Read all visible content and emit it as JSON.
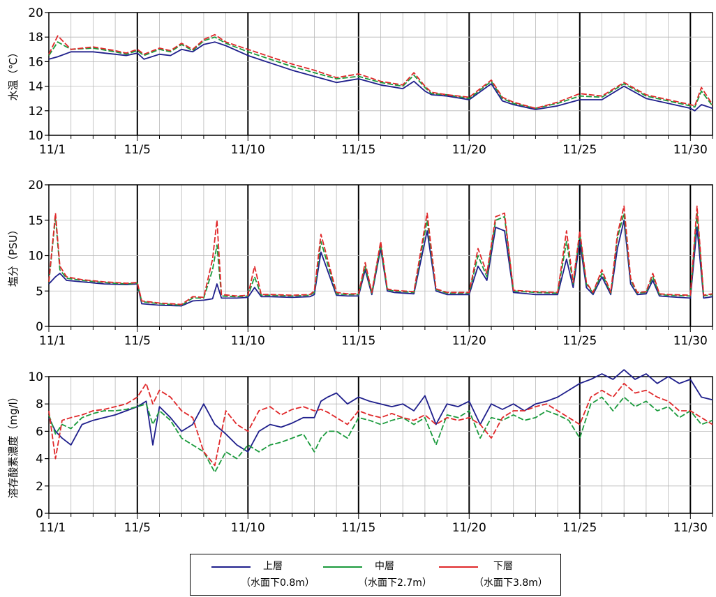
{
  "colors": {
    "upper": "#1f1f8c",
    "middle": "#1a9a3c",
    "lower": "#e0282a"
  },
  "legend": [
    {
      "key": "upper",
      "label": "上層",
      "depth": "（水面下0.8m）"
    },
    {
      "key": "middle",
      "label": "中層",
      "depth": "（水面下2.7m）"
    },
    {
      "key": "lower",
      "label": "下層",
      "depth": "（水面下3.8m）"
    }
  ],
  "chart_data": [
    {
      "type": "line",
      "ylabel": "水温（℃）",
      "ylim": [
        10,
        20
      ],
      "yticks": [
        10,
        12,
        14,
        16,
        18,
        20
      ],
      "xlim": [
        1,
        31
      ],
      "xticks": [
        "11/1",
        "11/5",
        "11/10",
        "11/15",
        "11/20",
        "11/25",
        "11/30"
      ],
      "x": [
        1,
        1.4,
        2,
        3,
        4,
        4.5,
        5,
        5.3,
        6,
        6.5,
        7,
        7.5,
        8,
        8.5,
        9,
        10,
        11,
        12,
        13,
        14,
        15,
        16,
        17,
        17.5,
        18,
        18.3,
        19,
        20,
        21,
        21.5,
        22,
        23,
        24,
        25,
        26,
        27,
        28,
        29,
        30,
        30.2,
        30.5,
        31
      ],
      "series": [
        {
          "name": "上層",
          "values": [
            16.2,
            16.4,
            16.8,
            16.8,
            16.6,
            16.5,
            16.7,
            16.2,
            16.6,
            16.5,
            17.0,
            16.8,
            17.4,
            17.6,
            17.3,
            16.5,
            15.9,
            15.3,
            14.8,
            14.3,
            14.6,
            14.1,
            13.8,
            14.4,
            13.6,
            13.3,
            13.2,
            12.9,
            14.2,
            12.8,
            12.5,
            12.1,
            12.4,
            12.9,
            12.9,
            14.0,
            13.0,
            12.6,
            12.2,
            12.0,
            12.5,
            12.2
          ]
        },
        {
          "name": "中層",
          "values": [
            16.5,
            17.6,
            17.0,
            17.1,
            16.8,
            16.6,
            16.9,
            16.5,
            17.0,
            16.8,
            17.4,
            16.9,
            17.7,
            18.0,
            17.5,
            16.8,
            16.2,
            15.6,
            15.1,
            14.6,
            14.8,
            14.3,
            14.0,
            14.9,
            13.9,
            13.4,
            13.3,
            13.0,
            14.4,
            13.0,
            12.6,
            12.2,
            12.6,
            13.2,
            13.1,
            14.2,
            13.2,
            12.8,
            12.4,
            12.3,
            13.6,
            12.4
          ]
        },
        {
          "name": "下層",
          "values": [
            16.6,
            18.1,
            17.0,
            17.2,
            16.9,
            16.7,
            17.0,
            16.6,
            17.1,
            16.9,
            17.5,
            17.0,
            17.8,
            18.2,
            17.6,
            17.0,
            16.4,
            15.8,
            15.3,
            14.7,
            15.0,
            14.4,
            14.1,
            15.1,
            14.0,
            13.5,
            13.3,
            13.1,
            14.5,
            13.1,
            12.7,
            12.2,
            12.7,
            13.4,
            13.2,
            14.3,
            13.3,
            12.9,
            12.5,
            12.4,
            13.9,
            12.5
          ]
        }
      ]
    },
    {
      "type": "line",
      "ylabel": "塩分（PSU）",
      "ylim": [
        0,
        20
      ],
      "yticks": [
        0,
        5,
        10,
        15,
        20
      ],
      "xlim": [
        1,
        31
      ],
      "xticks": [
        "11/1",
        "11/5",
        "11/10",
        "11/15",
        "11/20",
        "11/25",
        "11/30"
      ],
      "x": [
        1,
        1.3,
        1.5,
        1.8,
        2.5,
        3.5,
        4.5,
        5,
        5.2,
        6,
        7,
        7.5,
        8,
        8.4,
        8.6,
        8.8,
        9.5,
        10,
        10.3,
        10.6,
        11,
        12,
        12.8,
        13,
        13.3,
        14,
        14.5,
        15,
        15.3,
        15.6,
        16,
        16.3,
        16.6,
        17.5,
        18.1,
        18.5,
        19,
        20,
        20.4,
        20.8,
        21.2,
        21.6,
        22,
        23,
        24,
        24.4,
        24.7,
        25,
        25.3,
        25.6,
        26,
        26.4,
        26.7,
        27,
        27.3,
        27.6,
        28,
        28.3,
        28.6,
        29,
        30,
        30.3,
        30.6,
        31
      ],
      "series": [
        {
          "name": "上層",
          "values": [
            6.0,
            7.0,
            7.5,
            6.5,
            6.3,
            6.0,
            5.9,
            6.0,
            3.2,
            3.0,
            2.9,
            3.6,
            3.7,
            3.9,
            6.0,
            4.0,
            4.0,
            4.1,
            5.5,
            4.2,
            4.2,
            4.1,
            4.2,
            4.5,
            10.5,
            4.4,
            4.3,
            4.3,
            8.0,
            4.5,
            11.0,
            5.0,
            4.8,
            4.6,
            13.5,
            5.0,
            4.5,
            4.5,
            8.5,
            6.5,
            14.0,
            13.5,
            4.8,
            4.5,
            4.5,
            9.5,
            5.5,
            12.0,
            5.5,
            4.5,
            7.0,
            4.5,
            11.0,
            15.0,
            6.0,
            4.5,
            4.6,
            6.5,
            4.3,
            4.2,
            4.0,
            14.0,
            4.0,
            4.2
          ]
        },
        {
          "name": "中層",
          "values": [
            6.2,
            15.5,
            8.0,
            6.8,
            6.5,
            6.2,
            6.0,
            6.1,
            3.5,
            3.2,
            3.0,
            4.0,
            4.0,
            8.0,
            11.5,
            4.3,
            4.2,
            4.3,
            7.0,
            4.4,
            4.4,
            4.3,
            4.4,
            4.8,
            12.0,
            4.6,
            4.5,
            4.5,
            8.5,
            4.7,
            11.5,
            5.2,
            5.0,
            4.8,
            15.0,
            5.2,
            4.7,
            4.7,
            10.0,
            7.0,
            15.0,
            15.5,
            5.0,
            4.8,
            4.7,
            12.0,
            6.0,
            13.0,
            6.0,
            4.7,
            7.5,
            4.7,
            12.5,
            16.0,
            6.5,
            4.7,
            4.8,
            7.0,
            4.5,
            4.4,
            4.3,
            16.0,
            4.3,
            4.5
          ]
        },
        {
          "name": "下層",
          "values": [
            6.3,
            16.0,
            8.5,
            7.0,
            6.6,
            6.3,
            6.1,
            6.2,
            3.6,
            3.3,
            3.1,
            4.2,
            4.1,
            9.5,
            15.0,
            4.5,
            4.3,
            4.4,
            8.5,
            4.5,
            4.5,
            4.4,
            4.5,
            5.0,
            13.0,
            4.8,
            4.6,
            4.6,
            9.0,
            4.8,
            12.0,
            5.3,
            5.1,
            4.9,
            16.0,
            5.3,
            4.8,
            4.8,
            11.0,
            7.5,
            15.5,
            16.0,
            5.1,
            4.9,
            4.8,
            13.5,
            6.2,
            13.5,
            6.2,
            4.8,
            8.0,
            4.8,
            13.0,
            17.0,
            6.8,
            4.8,
            4.9,
            7.5,
            4.6,
            4.5,
            4.4,
            17.0,
            4.4,
            4.6
          ]
        }
      ]
    },
    {
      "type": "line",
      "ylabel": "溶存酸素濃度（mg/l）",
      "ylim": [
        0,
        10
      ],
      "yticks": [
        0,
        2,
        4,
        6,
        8,
        10
      ],
      "xlim": [
        1,
        31
      ],
      "xticks": [
        "11/1",
        "11/5",
        "11/10",
        "11/15",
        "11/20",
        "11/25",
        "11/30"
      ],
      "x": [
        1,
        1.3,
        1.6,
        2,
        2.5,
        3,
        3.5,
        4,
        4.5,
        5,
        5.4,
        5.7,
        6,
        6.5,
        7,
        7.5,
        8,
        8.5,
        9,
        9.5,
        10,
        10.5,
        11,
        11.5,
        12,
        12.5,
        13,
        13.3,
        13.6,
        14,
        14.5,
        15,
        15.5,
        16,
        16.5,
        17,
        17.5,
        18,
        18.5,
        19,
        19.5,
        20,
        20.5,
        21,
        21.5,
        22,
        22.5,
        23,
        23.5,
        24,
        24.5,
        25,
        25.5,
        26,
        26.5,
        27,
        27.5,
        28,
        28.5,
        29,
        29.5,
        30,
        30.5,
        31
      ],
      "series": [
        {
          "name": "上層",
          "values": [
            7.0,
            6.0,
            5.5,
            5.0,
            6.5,
            6.8,
            7.0,
            7.2,
            7.5,
            7.8,
            8.2,
            5.0,
            7.8,
            7.0,
            6.0,
            6.5,
            8.0,
            6.5,
            5.8,
            5.0,
            4.5,
            6.0,
            6.5,
            6.3,
            6.6,
            7.0,
            7.0,
            8.2,
            8.5,
            8.8,
            8.0,
            8.5,
            8.2,
            8.0,
            7.8,
            8.0,
            7.5,
            8.6,
            6.5,
            8.0,
            7.8,
            8.2,
            6.5,
            8.0,
            7.6,
            8.0,
            7.5,
            8.0,
            8.2,
            8.5,
            9.0,
            9.5,
            9.8,
            10.2,
            9.8,
            10.5,
            9.8,
            10.2,
            9.5,
            10.0,
            9.5,
            9.8,
            8.5,
            8.3
          ]
        },
        {
          "name": "中層",
          "values": [
            7.2,
            5.8,
            6.5,
            6.2,
            7.0,
            7.3,
            7.5,
            7.5,
            7.6,
            7.8,
            8.0,
            6.5,
            7.5,
            6.8,
            5.5,
            5.0,
            4.5,
            3.0,
            4.5,
            4.0,
            5.0,
            4.5,
            5.0,
            5.2,
            5.5,
            5.8,
            4.5,
            5.5,
            6.0,
            6.0,
            5.5,
            7.0,
            6.8,
            6.5,
            6.8,
            7.0,
            6.5,
            7.0,
            5.0,
            7.2,
            7.0,
            7.5,
            5.5,
            7.0,
            6.8,
            7.2,
            6.8,
            7.0,
            7.5,
            7.2,
            6.8,
            5.5,
            8.0,
            8.5,
            7.5,
            8.5,
            7.8,
            8.2,
            7.5,
            7.8,
            7.0,
            7.5,
            6.5,
            6.8
          ]
        },
        {
          "name": "下層",
          "values": [
            7.5,
            4.0,
            6.8,
            7.0,
            7.2,
            7.5,
            7.6,
            7.8,
            8.0,
            8.5,
            9.5,
            8.0,
            9.0,
            8.5,
            7.5,
            7.0,
            4.5,
            3.5,
            7.5,
            6.5,
            6.0,
            7.5,
            7.8,
            7.2,
            7.6,
            7.8,
            7.5,
            7.6,
            7.4,
            7.0,
            6.5,
            7.5,
            7.2,
            7.0,
            7.3,
            7.0,
            6.8,
            7.2,
            6.5,
            7.0,
            6.8,
            7.0,
            6.5,
            5.5,
            7.0,
            7.5,
            7.5,
            7.8,
            8.0,
            7.5,
            7.0,
            6.5,
            8.5,
            9.0,
            8.5,
            9.5,
            8.8,
            9.0,
            8.5,
            8.2,
            7.5,
            7.5,
            7.0,
            6.5
          ]
        }
      ]
    }
  ]
}
